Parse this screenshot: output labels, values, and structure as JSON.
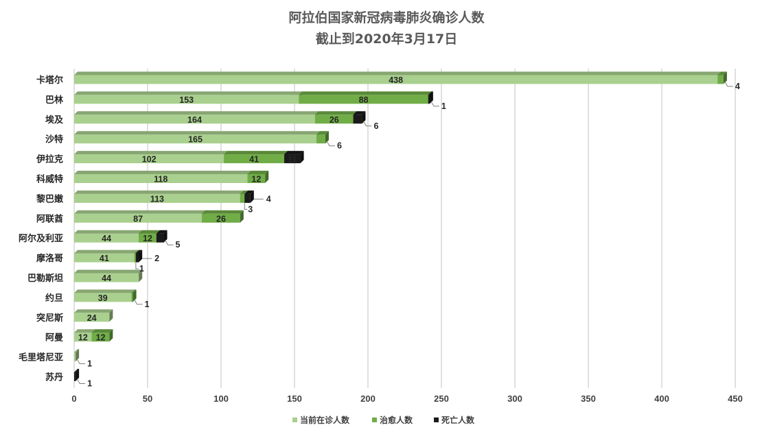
{
  "chart_data": {
    "type": "bar",
    "orientation": "horizontal",
    "stacked": true,
    "title": "阿拉伯国家新冠病毒肺炎确诊人数",
    "subtitle": "截止到2020年3月17日",
    "categories": [
      "卡塔尔",
      "巴林",
      "埃及",
      "沙特",
      "伊拉克",
      "科威特",
      "黎巴嫩",
      "阿联酋",
      "阿尔及利亚",
      "摩洛哥",
      "巴勒斯坦",
      "约旦",
      "突尼斯",
      "阿曼",
      "毛里塔尼亚",
      "苏丹"
    ],
    "series": [
      {
        "name": "当前在诊人数",
        "color": "#a9d08e",
        "values": [
          438,
          153,
          164,
          165,
          102,
          118,
          113,
          87,
          44,
          41,
          44,
          39,
          24,
          12,
          1,
          0
        ]
      },
      {
        "name": "治愈人数",
        "color": "#70ad47",
        "values": [
          4,
          88,
          26,
          6,
          41,
          12,
          3,
          26,
          12,
          1,
          0,
          1,
          0,
          12,
          0,
          0
        ]
      },
      {
        "name": "死亡人数",
        "color": "#1a1a1a",
        "values": [
          0,
          1,
          6,
          0,
          11,
          0,
          4,
          0,
          5,
          2,
          0,
          0,
          0,
          0,
          0,
          1
        ]
      }
    ],
    "xlim": [
      0,
      450
    ],
    "xticks": [
      0,
      50,
      100,
      150,
      200,
      250,
      300,
      350,
      400,
      450
    ],
    "grid": "vertical",
    "legend": "bottom"
  }
}
